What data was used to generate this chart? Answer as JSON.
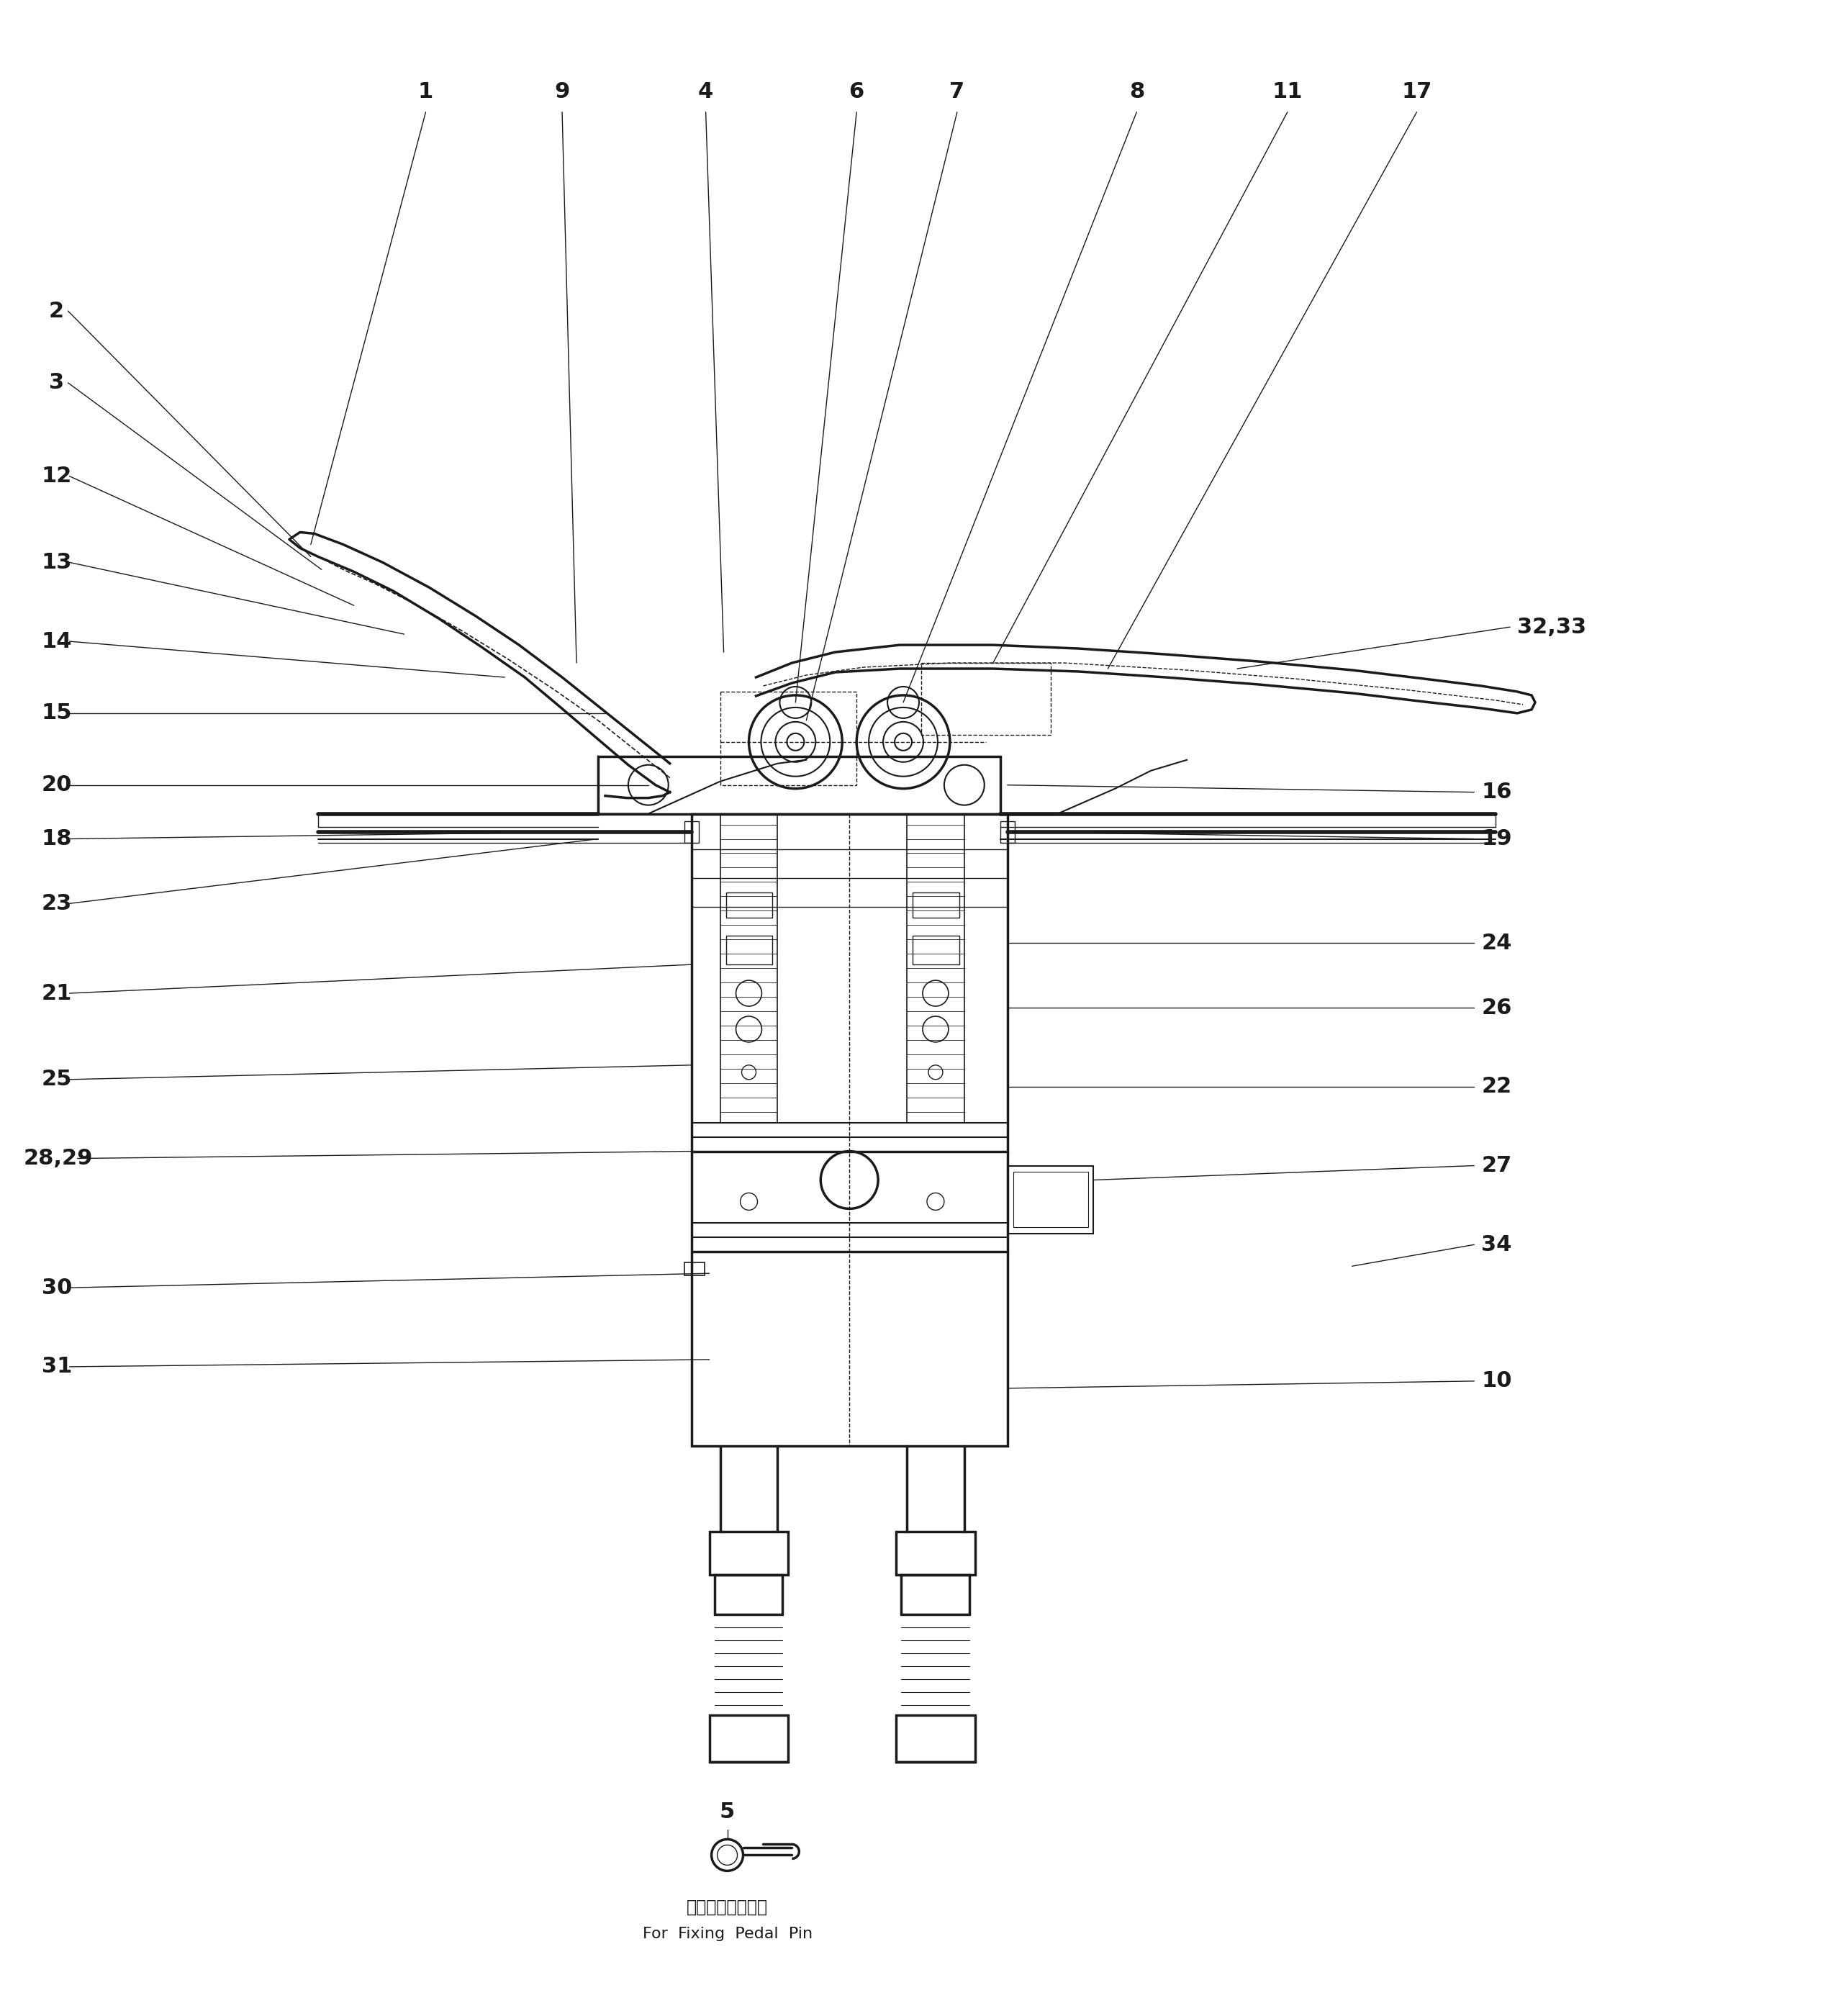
{
  "fig_width": 25.33,
  "fig_height": 28.01,
  "bg_color": "#ffffff",
  "pedal_label_jp": "ペダルピン固定用",
  "pedal_label_en": "For  Fixing  Pedal  Pin"
}
